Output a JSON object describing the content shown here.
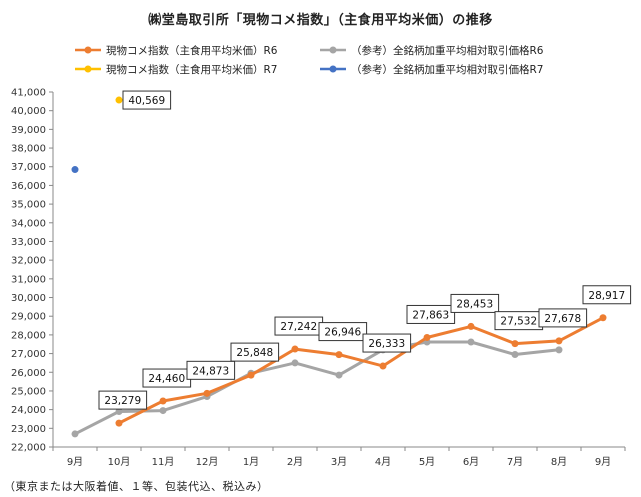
{
  "chart_data": {
    "type": "line",
    "title": "㈱堂島取引所「現物コメ指数」（主食用平均米価）の推移",
    "footnote": "（東京または大阪着値、１等、包装代込、税込み）",
    "categories": [
      "9月",
      "10月",
      "11月",
      "12月",
      "1月",
      "2月",
      "3月",
      "4月",
      "5月",
      "6月",
      "7月",
      "8月",
      "9月"
    ],
    "ylim": [
      22000,
      41000
    ],
    "yticks": [
      "22,000",
      "23,000",
      "24,000",
      "25,000",
      "26,000",
      "27,000",
      "28,000",
      "29,000",
      "30,000",
      "31,000",
      "32,000",
      "33,000",
      "34,000",
      "35,000",
      "36,000",
      "37,000",
      "38,000",
      "39,000",
      "40,000",
      "41,000"
    ],
    "grid": false,
    "legend_position": "top",
    "series": [
      {
        "name": "現物コメ指数（主食用平均米価）R6",
        "color": "#ED7D31",
        "values": [
          null,
          23279,
          24460,
          24873,
          25848,
          27242,
          26946,
          26333,
          27863,
          28453,
          27532,
          27678,
          28917
        ],
        "labels": [
          null,
          "23,279",
          "24,460",
          "24,873",
          "25,848",
          "27,242",
          "26,946",
          "26,333",
          "27,863",
          "28,453",
          "27,532",
          "27,678",
          "28,917"
        ]
      },
      {
        "name": "現物コメ指数（主食用平均米価）R7",
        "color": "#FFC000",
        "values": [
          null,
          40569,
          null,
          null,
          null,
          null,
          null,
          null,
          null,
          null,
          null,
          null,
          null
        ],
        "labels": [
          null,
          "40,569",
          null,
          null,
          null,
          null,
          null,
          null,
          null,
          null,
          null,
          null,
          null
        ]
      },
      {
        "name": "（参考）全銘柄加重平均相対取引価格R6",
        "color": "#A5A5A5",
        "values": [
          22700,
          23900,
          23950,
          24700,
          25950,
          26500,
          25850,
          27200,
          27620,
          27620,
          26950,
          27200,
          null
        ],
        "labels": [
          null,
          null,
          null,
          null,
          null,
          null,
          null,
          null,
          null,
          null,
          null,
          null,
          null
        ]
      },
      {
        "name": "（参考）全銘柄加重平均相対取引価格R7",
        "color": "#4472C4",
        "values": [
          36850,
          null,
          null,
          null,
          null,
          null,
          null,
          null,
          null,
          null,
          null,
          null,
          null
        ],
        "labels": [
          null,
          null,
          null,
          null,
          null,
          null,
          null,
          null,
          null,
          null,
          null,
          null,
          null
        ]
      }
    ]
  }
}
